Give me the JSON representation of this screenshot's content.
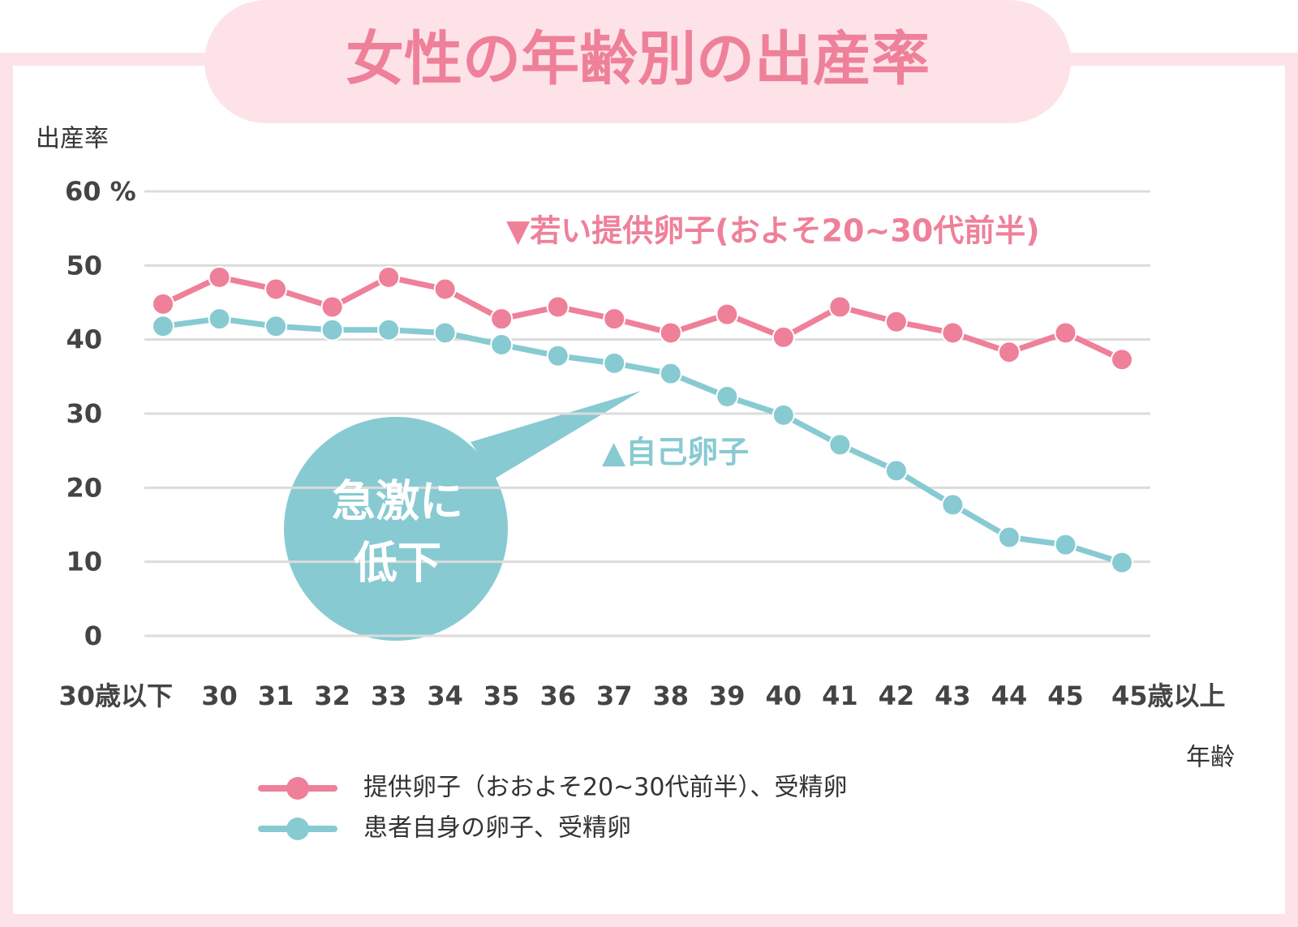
{
  "chart_data": {
    "type": "line",
    "title": "女性の年齢別の出産率",
    "y_label": "出産率",
    "x_label": "年齢",
    "categories": [
      "30歳以下",
      "30",
      "31",
      "32",
      "33",
      "34",
      "35",
      "36",
      "37",
      "38",
      "39",
      "40",
      "41",
      "42",
      "43",
      "44",
      "45",
      "45歳以上"
    ],
    "series": [
      {
        "name": "提供卵子（おおよそ20~30代前半）、受精卵",
        "color": "#ef8099",
        "values": [
          44.8,
          48.4,
          46.8,
          44.4,
          48.4,
          46.8,
          42.8,
          44.4,
          42.8,
          40.9,
          43.4,
          40.3,
          44.4,
          42.4,
          40.9,
          38.3,
          40.9,
          37.3
        ]
      },
      {
        "name": "患者自身の卵子、受精卵",
        "color": "#88cad2",
        "values": [
          41.8,
          42.8,
          41.8,
          41.3,
          41.3,
          40.9,
          39.3,
          37.8,
          36.8,
          35.4,
          32.3,
          29.8,
          25.8,
          22.3,
          17.7,
          13.3,
          12.3,
          9.9
        ]
      }
    ],
    "ylim": [
      0,
      60
    ],
    "yticks": [
      0,
      10,
      20,
      30,
      40,
      50,
      {
        "value": 60,
        "label": "60 %"
      }
    ],
    "grid": true,
    "annotations": [
      "▼若い提供卵子(およそ20~30代前半)",
      "▲自己卵子"
    ],
    "callout": [
      "急激に",
      "低下"
    ]
  }
}
